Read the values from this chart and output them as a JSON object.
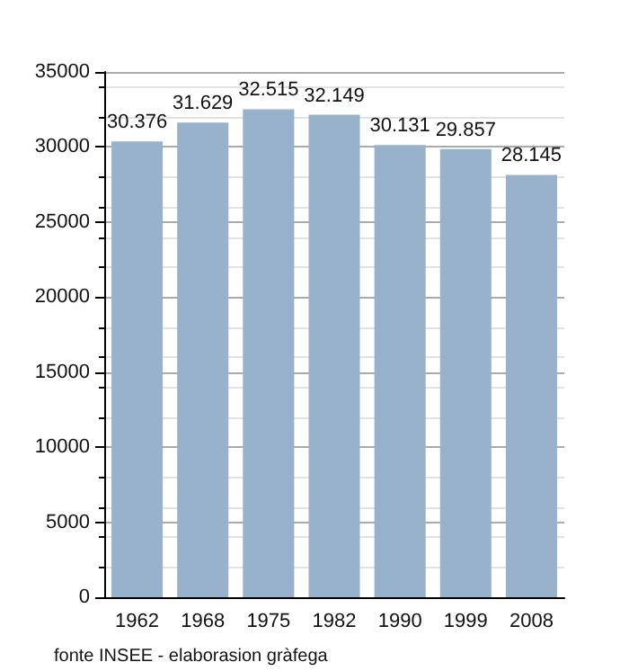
{
  "chart_data": {
    "type": "bar",
    "categories": [
      "1962",
      "1968",
      "1975",
      "1982",
      "1990",
      "1999",
      "2008"
    ],
    "values": [
      30376,
      31629,
      32515,
      32149,
      30131,
      29857,
      28145
    ],
    "value_labels": [
      "30.376",
      "31.629",
      "32.515",
      "32.149",
      "30.131",
      "29.857",
      "28.145"
    ],
    "color": "#98b2cb",
    "ylim": [
      0,
      35000
    ],
    "yticks": [
      0,
      5000,
      10000,
      15000,
      20000,
      25000,
      30000,
      35000
    ],
    "grid": "y",
    "annotations": [
      "fonte INSEE - elaborasion gràfega"
    ]
  }
}
